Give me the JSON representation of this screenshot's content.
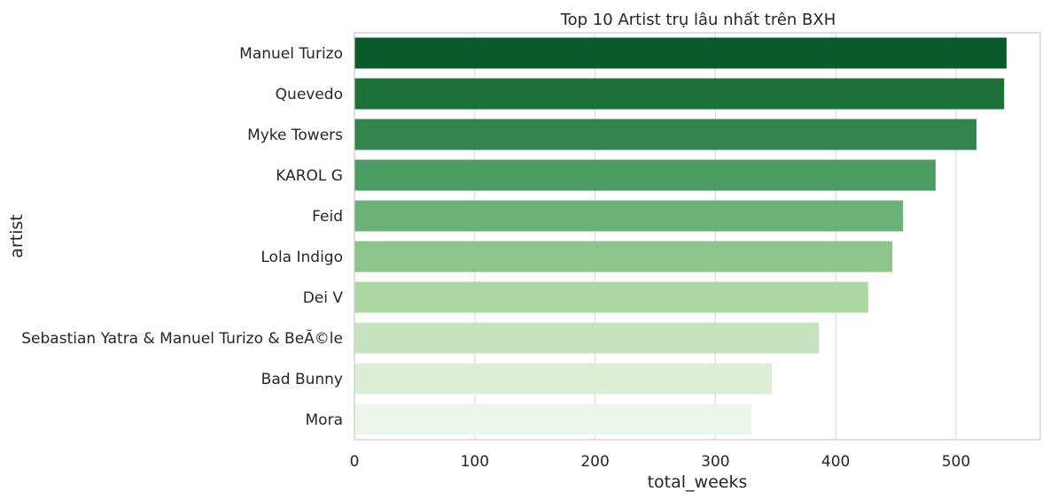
{
  "chart_data": {
    "type": "bar",
    "orientation": "horizontal",
    "title": "Top 10 Artist trụ lâu nhất trên BXH",
    "xlabel": "total_weeks",
    "ylabel": "artist",
    "xlim": [
      0,
      570
    ],
    "xticks": [
      0,
      100,
      200,
      300,
      400,
      500
    ],
    "grid": true,
    "categories": [
      "Manuel Turizo",
      "Quevedo",
      "Myke Towers",
      "KAROL G",
      "Feid",
      "Lola Indigo",
      "Dei V",
      "Sebastian Yatra & Manuel Turizo & BeÃ©le",
      "Bad Bunny",
      "Mora"
    ],
    "values": [
      542,
      540,
      517,
      483,
      456,
      447,
      427,
      386,
      347,
      330
    ],
    "colors": [
      "#0b5a2c",
      "#1d7139",
      "#32844c",
      "#4c9d63",
      "#6cb278",
      "#8dc58a",
      "#acd6a2",
      "#c6e3bf",
      "#dcefd6",
      "#edf7e9"
    ]
  }
}
